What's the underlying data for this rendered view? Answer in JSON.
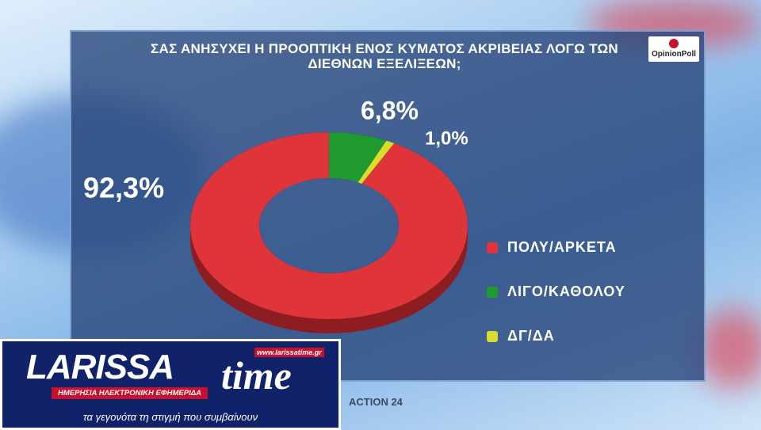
{
  "chart_data": {
    "type": "donut",
    "title": "ΣΑΣ ΑΝΗΣΥΧΕΙ Η ΠΡΟΟΠΤΙΚΗ ΕΝΟΣ ΚΥΜΑΤΟΣ ΑΚΡΙΒΕΙΑΣ ΛΟΓΩ ΤΩΝ ΔΙΕΘΝΩΝ ΕΞΕΛΙΞΕΩΝ;",
    "categories": [
      "ΠΟΛΥ/ΑΡΚΕΤΑ",
      "ΛΙΓΟ/ΚΑΘΟΛΟΥ",
      "ΔΓ/ΔΑ"
    ],
    "values": [
      92.3,
      6.8,
      1.0
    ],
    "value_labels": [
      "92,3%",
      "6,8%",
      "1,0%"
    ],
    "colors": [
      "#e0343b",
      "#1f9a2e",
      "#d8dc2c"
    ]
  },
  "source": "OpinionPoll",
  "channel": "ACTION 24",
  "watermark": {
    "name": "LARISSA",
    "time": "time",
    "url": "www.larissatime.gr",
    "subtitle": "ΗΜΕΡΗΣΙΑ ΗΛΕΚΤΡΟΝΙΚΗ ΕΦΗΜΕΡΙΔΑ",
    "tagline": "τα γεγονότα τη στιγμή που συμβαίνουν"
  }
}
